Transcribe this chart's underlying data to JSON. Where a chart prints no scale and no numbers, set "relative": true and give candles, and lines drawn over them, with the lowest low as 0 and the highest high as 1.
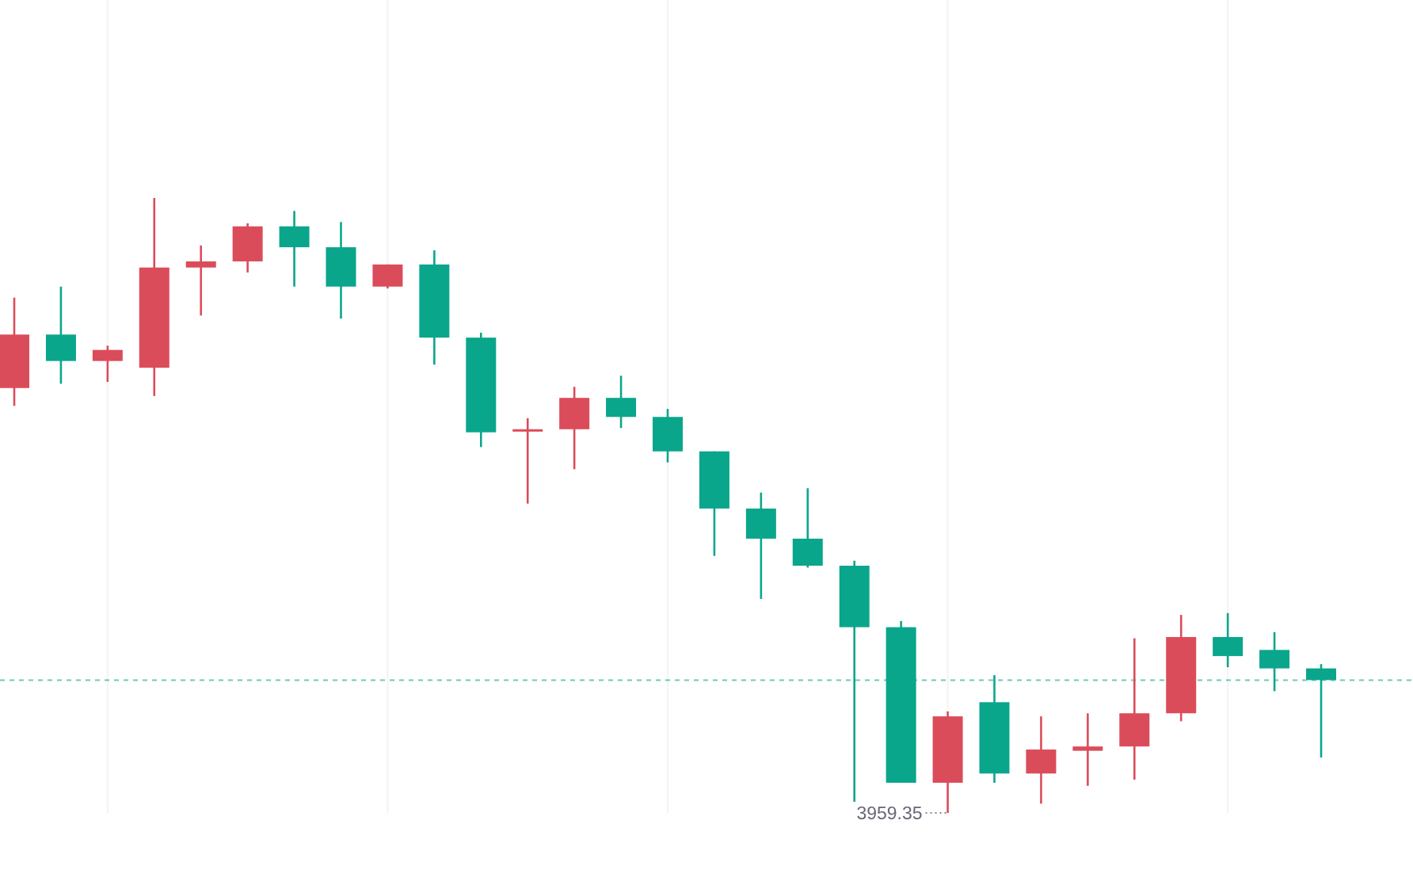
{
  "chart_data": {
    "type": "candlestick",
    "relative": true,
    "categories": [
      null,
      null,
      null,
      null,
      null,
      null,
      null,
      null,
      null,
      null,
      null,
      null,
      null,
      null,
      null,
      null,
      null,
      null,
      null,
      null,
      null,
      null,
      null,
      null,
      null,
      null,
      null,
      null,
      null
    ],
    "ohlc": [
      [
        0.691,
        0.838,
        0.662,
        0.778
      ],
      [
        0.778,
        0.856,
        0.698,
        0.735
      ],
      [
        0.735,
        0.76,
        0.701,
        0.753
      ],
      [
        0.724,
        1,
        0.678,
        0.887
      ],
      [
        0.887,
        0.923,
        0.809,
        0.897
      ],
      [
        0.897,
        0.959,
        0.879,
        0.954
      ],
      [
        0.954,
        0.979,
        0.856,
        0.92
      ],
      [
        0.92,
        0.961,
        0.804,
        0.856
      ],
      [
        0.856,
        0.892,
        0.853,
        0.892
      ],
      [
        0.892,
        0.915,
        0.729,
        0.773
      ],
      [
        0.773,
        0.781,
        0.595,
        0.619
      ],
      [
        0.624,
        0.642,
        0.503,
        0.624
      ],
      [
        0.624,
        0.693,
        0.559,
        0.675
      ],
      [
        0.675,
        0.711,
        0.626,
        0.644
      ],
      [
        0.644,
        0.657,
        0.57,
        0.588
      ],
      [
        0.588,
        0.588,
        0.418,
        0.495
      ],
      [
        0.495,
        0.521,
        0.348,
        0.446
      ],
      [
        0.446,
        0.528,
        0.399,
        0.402
      ],
      [
        0.402,
        0.41,
        0.018,
        0.302
      ],
      [
        0.302,
        0.312,
        0.049,
        0.049
      ],
      [
        0.049,
        0.165,
        0,
        0.157
      ],
      [
        0.18,
        0.224,
        0.049,
        0.064
      ],
      [
        0.064,
        0.157,
        0.015,
        0.103
      ],
      [
        0.101,
        0.162,
        0.044,
        0.108
      ],
      [
        0.108,
        0.284,
        0.054,
        0.162
      ],
      [
        0.162,
        0.322,
        0.149,
        0.286
      ],
      [
        0.286,
        0.325,
        0.237,
        0.255
      ],
      [
        0.265,
        0.294,
        0.198,
        0.235
      ],
      [
        0.235,
        0.242,
        0.09,
        0.216
      ]
    ],
    "colors": [
      "#db4c5a",
      "#0aa68c",
      "#db4c5a",
      "#db4c5a",
      "#db4c5a",
      "#db4c5a",
      "#0aa68c",
      "#0aa68c",
      "#db4c5a",
      "#0aa68c",
      "#0aa68c",
      "#db4c5a",
      "#db4c5a",
      "#0aa68c",
      "#0aa68c",
      "#0aa68c",
      "#0aa68c",
      "#0aa68c",
      "#0aa68c",
      "#0aa68c",
      "#db4c5a",
      "#0aa68c",
      "#db4c5a",
      "#db4c5a",
      "#db4c5a",
      "#db4c5a",
      "#0aa68c",
      "#0aa68c",
      "#0aa68c"
    ],
    "ref_lines": [
      {
        "axis": "y",
        "value": 0.216,
        "color": "#0aa68c",
        "line_style": "dashed"
      }
    ],
    "annotations": [
      "3959.35"
    ],
    "grid": "x"
  }
}
